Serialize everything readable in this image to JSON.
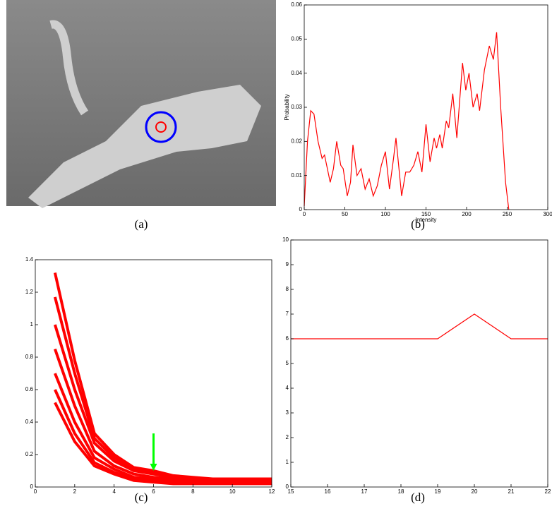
{
  "image": {
    "caption": "(a)"
  },
  "chart_data": [
    {
      "type": "line",
      "caption": "(b)",
      "xlabel": "Intensity",
      "ylabel": "Probability",
      "x": [
        0,
        4,
        8,
        12,
        17,
        22,
        25,
        32,
        36,
        40,
        45,
        48,
        53,
        57,
        60,
        65,
        70,
        75,
        80,
        85,
        90,
        95,
        100,
        105,
        110,
        113,
        120,
        125,
        130,
        135,
        140,
        145,
        150,
        155,
        160,
        163,
        167,
        170,
        175,
        178,
        183,
        188,
        195,
        199,
        203,
        208,
        213,
        216,
        222,
        228,
        233,
        237,
        242,
        248,
        252
      ],
      "series": [
        {
          "color": "#ff0000",
          "values": [
            0.001,
            0.02,
            0.029,
            0.028,
            0.02,
            0.015,
            0.016,
            0.008,
            0.012,
            0.02,
            0.013,
            0.012,
            0.004,
            0.008,
            0.019,
            0.01,
            0.012,
            0.006,
            0.009,
            0.004,
            0.007,
            0.013,
            0.017,
            0.006,
            0.015,
            0.021,
            0.004,
            0.011,
            0.011,
            0.013,
            0.017,
            0.011,
            0.025,
            0.014,
            0.021,
            0.018,
            0.022,
            0.018,
            0.026,
            0.024,
            0.034,
            0.021,
            0.043,
            0.035,
            0.04,
            0.03,
            0.034,
            0.029,
            0.041,
            0.048,
            0.044,
            0.052,
            0.03,
            0.008,
            0
          ]
        }
      ],
      "xlim": [
        0,
        300
      ],
      "xticks": [
        0,
        50,
        100,
        150,
        200,
        250,
        300
      ],
      "ylim": [
        0,
        0.06
      ],
      "yticks": [
        0,
        0.01,
        0.02,
        0.03,
        0.04,
        0.05,
        0.06
      ]
    },
    {
      "type": "line",
      "caption": "(c)",
      "x": [
        1,
        2,
        3,
        4,
        5,
        6,
        7,
        8,
        9,
        10,
        11,
        12
      ],
      "series": [
        {
          "color": "#ff0000",
          "values": [
            1.32,
            0.78,
            0.33,
            0.2,
            0.12,
            0.1,
            0.07,
            0.06,
            0.05,
            0.05,
            0.05,
            0.05
          ]
        },
        {
          "color": "#ff0000",
          "values": [
            1.17,
            0.7,
            0.3,
            0.18,
            0.11,
            0.09,
            0.065,
            0.055,
            0.045,
            0.045,
            0.04,
            0.04
          ]
        },
        {
          "color": "#ff0000",
          "values": [
            1.0,
            0.6,
            0.27,
            0.16,
            0.1,
            0.08,
            0.06,
            0.05,
            0.04,
            0.04,
            0.04,
            0.04
          ]
        },
        {
          "color": "#ff0000",
          "values": [
            0.85,
            0.5,
            0.22,
            0.13,
            0.08,
            0.06,
            0.05,
            0.04,
            0.035,
            0.035,
            0.035,
            0.035
          ]
        },
        {
          "color": "#ff0000",
          "values": [
            0.7,
            0.4,
            0.18,
            0.11,
            0.06,
            0.05,
            0.04,
            0.03,
            0.03,
            0.03,
            0.03,
            0.03
          ]
        },
        {
          "color": "#ff0000",
          "values": [
            0.6,
            0.33,
            0.15,
            0.09,
            0.05,
            0.04,
            0.03,
            0.025,
            0.025,
            0.025,
            0.025,
            0.025
          ]
        },
        {
          "color": "#ff0000",
          "values": [
            0.52,
            0.28,
            0.13,
            0.08,
            0.04,
            0.03,
            0.02,
            0.02,
            0.02,
            0.02,
            0.02,
            0.02
          ]
        }
      ],
      "arrow": {
        "x": 6,
        "y_start": 0.33,
        "y_end": 0.1,
        "color": "#00ff00"
      },
      "xlim": [
        0,
        12
      ],
      "xticks": [
        0,
        2,
        4,
        6,
        8,
        10,
        12
      ],
      "ylim": [
        0,
        1.4
      ],
      "yticks": [
        0,
        0.2,
        0.4,
        0.6,
        0.8,
        1,
        1.2,
        1.4
      ]
    },
    {
      "type": "line",
      "caption": "(d)",
      "x": [
        15,
        16,
        17,
        18,
        19,
        20,
        21,
        22
      ],
      "series": [
        {
          "color": "#ff0000",
          "values": [
            6,
            6,
            6,
            6,
            6,
            7,
            6,
            6
          ]
        }
      ],
      "xlim": [
        15,
        22
      ],
      "xticks": [
        15,
        16,
        17,
        18,
        19,
        20,
        21,
        22
      ],
      "ylim": [
        0,
        10
      ],
      "yticks": [
        0,
        1,
        2,
        3,
        4,
        5,
        6,
        7,
        8,
        9,
        10
      ]
    }
  ]
}
